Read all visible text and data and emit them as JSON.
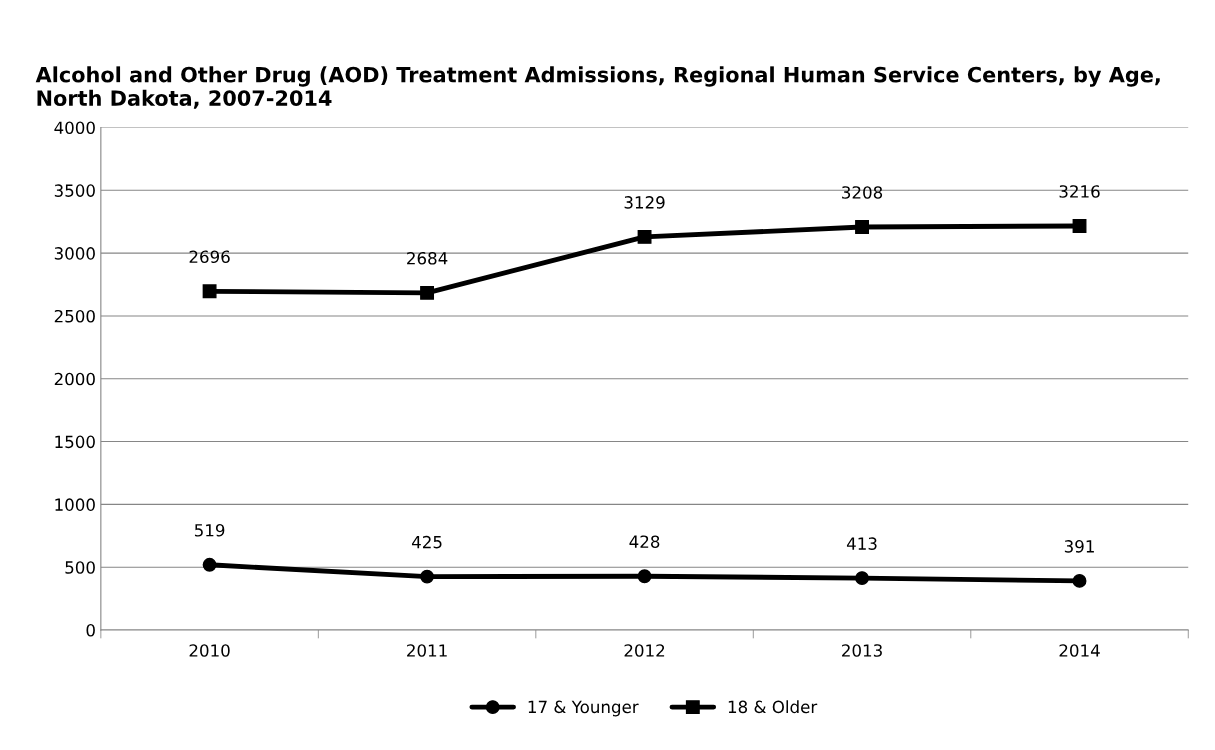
{
  "chart_data": {
    "type": "line",
    "title": "Alcohol and Other Drug (AOD) Treatment Admissions, Regional Human Service Centers, by Age, North Dakota, 2007-2014",
    "categories": [
      "2010",
      "2011",
      "2012",
      "2013",
      "2014"
    ],
    "series": [
      {
        "name": "17 & Younger",
        "color": "#000000",
        "marker": "circle",
        "values": [
          519,
          425,
          428,
          413,
          391
        ]
      },
      {
        "name": "18 & Older",
        "color": "#000000",
        "marker": "square",
        "values": [
          2696,
          2684,
          3129,
          3208,
          3216
        ]
      }
    ],
    "ylim": [
      0,
      4000
    ],
    "yticks": [
      0,
      500,
      1000,
      1500,
      2000,
      2500,
      3000,
      3500,
      4000
    ],
    "grid": "y",
    "legend": "bottom",
    "data_labels": true,
    "line_style": "solid"
  }
}
